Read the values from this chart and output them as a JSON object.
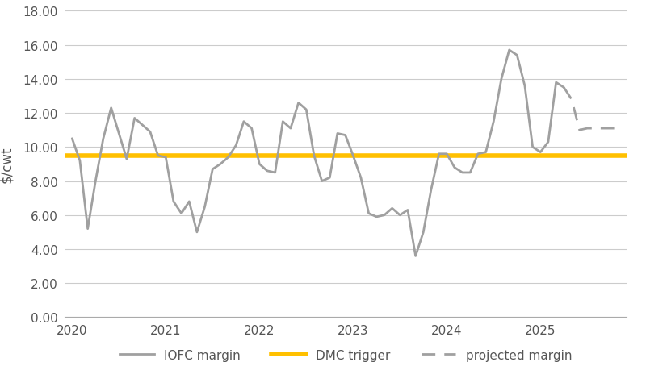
{
  "iofc_x": [
    2020.0,
    2020.083,
    2020.167,
    2020.25,
    2020.333,
    2020.417,
    2020.5,
    2020.583,
    2020.667,
    2020.75,
    2020.833,
    2020.917,
    2021.0,
    2021.083,
    2021.167,
    2021.25,
    2021.333,
    2021.417,
    2021.5,
    2021.583,
    2021.667,
    2021.75,
    2021.833,
    2021.917,
    2022.0,
    2022.083,
    2022.167,
    2022.25,
    2022.333,
    2022.417,
    2022.5,
    2022.583,
    2022.667,
    2022.75,
    2022.833,
    2022.917,
    2023.0,
    2023.083,
    2023.167,
    2023.25,
    2023.333,
    2023.417,
    2023.5,
    2023.583,
    2023.667,
    2023.75,
    2023.833,
    2023.917,
    2024.0,
    2024.083,
    2024.167,
    2024.25,
    2024.333,
    2024.417,
    2024.5,
    2024.583,
    2024.667,
    2024.75,
    2024.833,
    2024.917,
    2025.0,
    2025.083,
    2025.167,
    2025.25
  ],
  "iofc_y": [
    10.5,
    9.2,
    5.2,
    8.0,
    10.5,
    12.3,
    10.8,
    9.3,
    11.7,
    11.3,
    10.9,
    9.5,
    9.4,
    6.8,
    6.1,
    6.8,
    5.0,
    6.5,
    8.7,
    9.0,
    9.4,
    10.1,
    11.5,
    11.1,
    9.0,
    8.6,
    8.5,
    11.5,
    11.1,
    12.6,
    12.2,
    9.5,
    8.0,
    8.2,
    10.8,
    10.7,
    9.5,
    8.2,
    6.1,
    5.9,
    6.0,
    6.4,
    6.0,
    6.3,
    3.6,
    5.0,
    7.5,
    9.6,
    9.6,
    8.8,
    8.5,
    8.5,
    9.6,
    9.7,
    11.5,
    14.0,
    15.7,
    15.4,
    13.6,
    10.0,
    9.7,
    10.3,
    13.8,
    13.5
  ],
  "proj_x": [
    2025.25,
    2025.333,
    2025.417,
    2025.5,
    2025.583,
    2025.667,
    2025.75,
    2025.833
  ],
  "proj_y": [
    13.5,
    12.8,
    11.0,
    11.1,
    11.1,
    11.1,
    11.1,
    11.1
  ],
  "dmc_trigger": 9.5,
  "ylabel": "$/cwt",
  "xlim": [
    2019.92,
    2025.92
  ],
  "ylim": [
    0.0,
    18.0
  ],
  "yticks": [
    0.0,
    2.0,
    4.0,
    6.0,
    8.0,
    10.0,
    12.0,
    14.0,
    16.0,
    18.0
  ],
  "xticks": [
    2020,
    2021,
    2022,
    2023,
    2024,
    2025
  ],
  "iofc_color": "#a0a0a0",
  "proj_color": "#a0a0a0",
  "dmc_color": "#FFC000",
  "legend_labels": [
    "IOFC margin",
    "DMC trigger",
    "projected margin"
  ],
  "background_color": "#ffffff",
  "grid_color": "#cccccc"
}
